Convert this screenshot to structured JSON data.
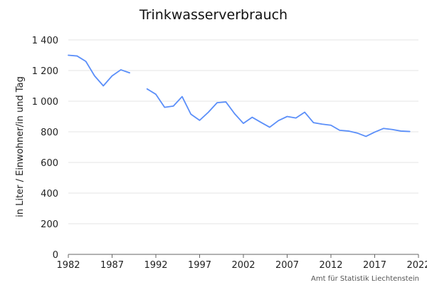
{
  "chart_data": {
    "type": "line",
    "title": "Trinkwasserverbrauch",
    "xlabel": "",
    "ylabel": "in Liter / Einwohner/in und Tag",
    "xlim": [
      1982,
      2022
    ],
    "ylim": [
      0,
      1400
    ],
    "x_ticks": [
      1982,
      1987,
      1992,
      1997,
      2002,
      2007,
      2012,
      2017,
      2022
    ],
    "y_ticks": [
      0,
      200,
      400,
      600,
      800,
      1000,
      1200,
      1400
    ],
    "y_tick_labels": [
      "0",
      "200",
      "400",
      "600",
      "800",
      "1 000",
      "1 200",
      "1 400"
    ],
    "grid": "horizontal",
    "legend": "none",
    "source": "Amt für Statistik Liechtenstein",
    "colors": {
      "series": "#5b8ff9"
    },
    "series": [
      {
        "segments": [
          [
            [
              1982,
              1300
            ],
            [
              1983,
              1295
            ],
            [
              1984,
              1260
            ],
            [
              1985,
              1165
            ],
            [
              1986,
              1100
            ],
            [
              1987,
              1165
            ],
            [
              1988,
              1205
            ],
            [
              1989,
              1185
            ]
          ],
          [
            [
              1991,
              1080
            ],
            [
              1992,
              1045
            ],
            [
              1993,
              960
            ],
            [
              1994,
              968
            ],
            [
              1995,
              1030
            ],
            [
              1996,
              915
            ],
            [
              1997,
              875
            ],
            [
              1998,
              928
            ],
            [
              1999,
              990
            ],
            [
              2000,
              995
            ],
            [
              2001,
              918
            ],
            [
              2002,
              855
            ],
            [
              2003,
              895
            ],
            [
              2004,
              862
            ],
            [
              2005,
              830
            ],
            [
              2006,
              873
            ],
            [
              2007,
              900
            ],
            [
              2008,
              890
            ],
            [
              2009,
              928
            ],
            [
              2010,
              860
            ],
            [
              2011,
              850
            ],
            [
              2012,
              843
            ],
            [
              2013,
              810
            ],
            [
              2014,
              805
            ],
            [
              2015,
              792
            ],
            [
              2016,
              770
            ],
            [
              2017,
              798
            ],
            [
              2018,
              822
            ],
            [
              2019,
              815
            ],
            [
              2020,
              805
            ],
            [
              2021,
              802
            ]
          ]
        ]
      }
    ]
  }
}
